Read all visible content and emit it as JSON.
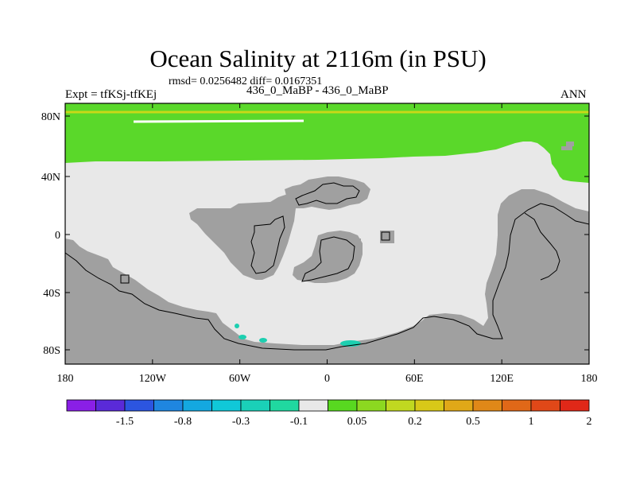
{
  "header": {
    "title": "Ocean Salinity at 2116m (in PSU)",
    "stats": "rmsd= 0.0256482 diff= 0.0167351",
    "expt": "Expt = tfKSj-tfKEj",
    "subtitle": "436_0_MaBP - 436_0_MaBP",
    "season": "ANN"
  },
  "axes": {
    "y_ticks": [
      "80N",
      "40N",
      "0",
      "40S",
      "80S"
    ],
    "x_ticks": [
      "180",
      "120W",
      "60W",
      "0",
      "60E",
      "120E",
      "180"
    ]
  },
  "legend": {
    "labels": [
      "-1.5",
      "-0.8",
      "-0.3",
      "-0.1",
      "0.05",
      "0.2",
      "0.5",
      "1",
      "2"
    ],
    "colors": [
      "#8a1fe6",
      "#5a2ad8",
      "#2c55e0",
      "#1f86e0",
      "#14a8e0",
      "#10c8d8",
      "#1ad0b8",
      "#20d8a0",
      "#e8e8e8",
      "#58d820",
      "#8cd820",
      "#c0d820",
      "#d8c818",
      "#e0a818",
      "#e08818",
      "#e06818",
      "#e04818",
      "#e02818"
    ]
  },
  "map_colors": {
    "land": "#a0a0a0",
    "ocean_neutral": "#e8e8e8",
    "positive_anomaly": "#5ad82a",
    "negative_anomaly": "#1dcfb0",
    "contour": "#000000"
  }
}
